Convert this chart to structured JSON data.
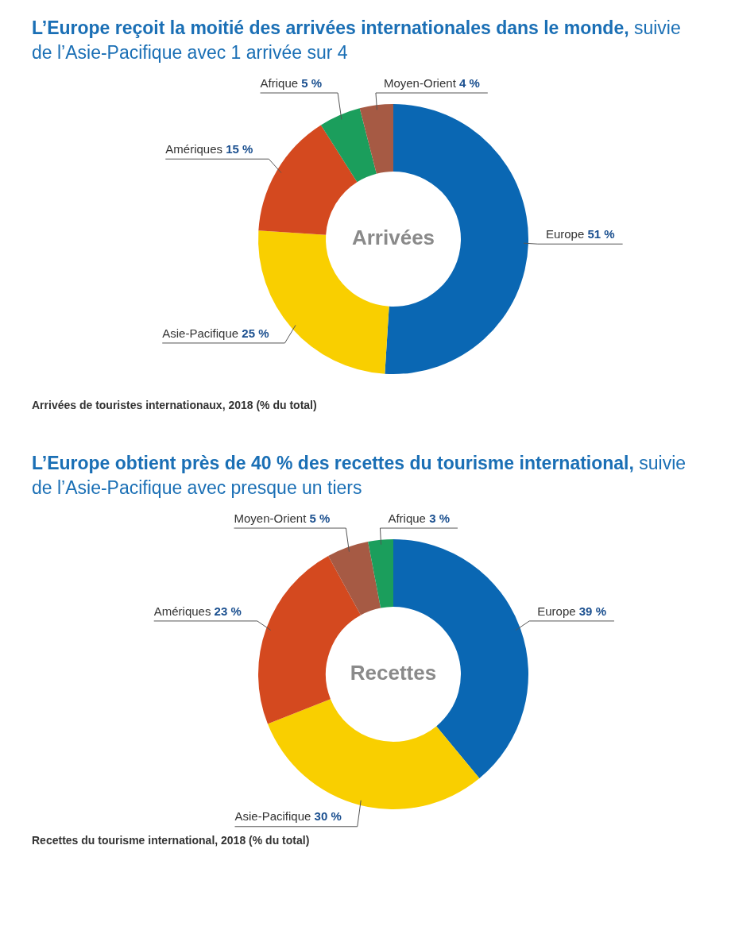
{
  "chart_data": [
    {
      "type": "donut",
      "title": "L’Europe reçoit la moitié des arrivées internationales dans le monde,",
      "subtitle": "suivie de l’Asie-Pacifique avec 1 arrivée sur 4",
      "categories": [
        "Europe",
        "Asie-Pacifique",
        "Amériques",
        "Afrique",
        "Moyen-Orient"
      ],
      "values": [
        51,
        25,
        15,
        5,
        4
      ],
      "value_labels": [
        "51 %",
        "25 %",
        "15 %",
        "5 %",
        "4 %"
      ],
      "colors": [
        "#0a67b3",
        "#f9cf00",
        "#d4491f",
        "#1b9e5c",
        "#a65a44"
      ],
      "annotations": [
        "Arrivées",
        "Arrivées de touristes internationaux, 2018 (% du total)"
      ]
    },
    {
      "type": "donut",
      "title": "L’Europe obtient près de 40 % des recettes du tourisme international,",
      "subtitle": "suivie de l’Asie-Pacifique avec presque un tiers",
      "categories": [
        "Europe",
        "Asie-Pacifique",
        "Amériques",
        "Moyen-Orient",
        "Afrique"
      ],
      "values": [
        39,
        30,
        23,
        5,
        3
      ],
      "value_labels": [
        "39 %",
        "30 %",
        "23 %",
        "5 %",
        "3 %"
      ],
      "colors": [
        "#0a67b3",
        "#f9cf00",
        "#d4491f",
        "#a65a44",
        "#1b9e5c"
      ],
      "annotations": [
        "Recettes",
        "Recettes du tourisme international, 2018 (% du total)"
      ]
    }
  ]
}
